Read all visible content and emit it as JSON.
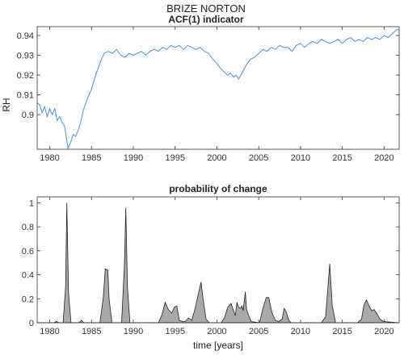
{
  "figure": {
    "suptitle": "BRIZE NORTON"
  },
  "chart_data": [
    {
      "type": "line",
      "title": "ACF(1) indicator",
      "xlabel": "",
      "ylabel": "RH",
      "xlim": [
        1978.5,
        2021.8
      ],
      "ylim": [
        0.8825,
        0.9445
      ],
      "xticks": [
        1980,
        1985,
        1990,
        1995,
        2000,
        2005,
        2010,
        2015,
        2020
      ],
      "yticks": [
        0.9,
        0.91,
        0.92,
        0.93,
        0.94
      ],
      "yticklabels": [
        "0.9",
        "0.91",
        "0.92",
        "0.93",
        "0.94"
      ],
      "grid": false,
      "color": "#4a90d9",
      "series": [
        {
          "x": [
            1978.5,
            1978.8,
            1979.1,
            1979.4,
            1979.7,
            1980.0,
            1980.3,
            1980.6,
            1980.9,
            1981.2,
            1981.5,
            1981.8,
            1982.0,
            1982.2,
            1982.5,
            1982.8,
            1983.1,
            1983.4,
            1983.7,
            1984.0,
            1984.5,
            1985.0,
            1985.5,
            1986.0,
            1986.5,
            1987.0,
            1987.5,
            1988.0,
            1988.5,
            1989.0,
            1989.5,
            1990.0,
            1990.5,
            1991.0,
            1991.5,
            1992.0,
            1992.5,
            1993.0,
            1993.5,
            1994.0,
            1994.5,
            1995.0,
            1995.5,
            1996.0,
            1996.5,
            1997.0,
            1997.5,
            1998.0,
            1998.5,
            1999.0,
            1999.5,
            2000.0,
            2000.5,
            2001.0,
            2001.3,
            2001.6,
            2002.0,
            2002.3,
            2002.6,
            2003.0,
            2003.5,
            2004.0,
            2004.5,
            2005.0,
            2005.5,
            2006.0,
            2006.5,
            2007.0,
            2007.5,
            2008.0,
            2008.5,
            2009.0,
            2009.5,
            2010.0,
            2010.5,
            2011.0,
            2011.5,
            2012.0,
            2012.5,
            2013.0,
            2013.5,
            2014.0,
            2014.5,
            2015.0,
            2015.5,
            2016.0,
            2016.5,
            2017.0,
            2017.5,
            2018.0,
            2018.5,
            2019.0,
            2019.5,
            2020.0,
            2020.5,
            2021.0,
            2021.5,
            2021.8
          ],
          "y": [
            0.906,
            0.905,
            0.901,
            0.904,
            0.899,
            0.903,
            0.9,
            0.903,
            0.897,
            0.899,
            0.896,
            0.894,
            0.888,
            0.883,
            0.886,
            0.89,
            0.889,
            0.892,
            0.896,
            0.902,
            0.908,
            0.913,
            0.92,
            0.926,
            0.931,
            0.932,
            0.931,
            0.933,
            0.93,
            0.929,
            0.931,
            0.93,
            0.931,
            0.932,
            0.93,
            0.932,
            0.933,
            0.932,
            0.934,
            0.933,
            0.935,
            0.934,
            0.935,
            0.933,
            0.935,
            0.934,
            0.933,
            0.934,
            0.932,
            0.931,
            0.928,
            0.926,
            0.923,
            0.921,
            0.92,
            0.921,
            0.919,
            0.92,
            0.918,
            0.921,
            0.925,
            0.928,
            0.929,
            0.931,
            0.933,
            0.932,
            0.934,
            0.933,
            0.935,
            0.934,
            0.934,
            0.932,
            0.935,
            0.936,
            0.934,
            0.936,
            0.937,
            0.936,
            0.938,
            0.937,
            0.936,
            0.937,
            0.938,
            0.936,
            0.938,
            0.939,
            0.937,
            0.938,
            0.937,
            0.939,
            0.938,
            0.939,
            0.938,
            0.94,
            0.939,
            0.941,
            0.943,
            0.943
          ]
        }
      ]
    },
    {
      "type": "area",
      "title": "probability of change",
      "xlabel": "time [years]",
      "ylabel": "",
      "xlim": [
        1978.5,
        2021.8
      ],
      "ylim": [
        0,
        1.05
      ],
      "xticks": [
        1980,
        1985,
        1990,
        1995,
        2000,
        2005,
        2010,
        2015,
        2020
      ],
      "yticks": [
        0,
        0.2,
        0.4,
        0.6,
        0.8,
        1
      ],
      "yticklabels": [
        "0",
        "0.2",
        "0.4",
        "0.6",
        "0.8",
        "1"
      ],
      "grid": false,
      "fill_color": "#a9a9a9",
      "series": [
        {
          "x": [
            1978.5,
            1980.5,
            1980.8,
            1981.1,
            1981.6,
            1981.9,
            1982.05,
            1982.25,
            1982.55,
            1983.5,
            1983.8,
            1984.1,
            1986.0,
            1986.4,
            1986.65,
            1986.95,
            1987.1,
            1987.45,
            1988.6,
            1988.95,
            1989.1,
            1989.3,
            1989.6,
            1993.0,
            1993.4,
            1993.8,
            1994.2,
            1994.6,
            1994.9,
            1995.2,
            1995.5,
            1995.9,
            1996.2,
            1996.6,
            1997.0,
            1997.4,
            1997.8,
            1998.1,
            1998.3,
            1998.7,
            1999.1,
            2000.5,
            2000.9,
            2001.3,
            2001.7,
            2002.0,
            2002.2,
            2002.4,
            2002.6,
            2002.85,
            2003.0,
            2003.15,
            2003.4,
            2003.55,
            2003.8,
            2004.1,
            2005.1,
            2005.5,
            2005.9,
            2006.2,
            2006.6,
            2007.0,
            2007.4,
            2007.8,
            2008.05,
            2008.3,
            2008.6,
            2008.9,
            2012.5,
            2013.0,
            2013.3,
            2013.5,
            2013.8,
            2014.2,
            2016.8,
            2017.3,
            2017.6,
            2017.9,
            2018.2,
            2018.5,
            2018.8,
            2019.1,
            2019.5,
            2019.9,
            2021.8
          ],
          "y": [
            0,
            0,
            0.01,
            0,
            0,
            0.3,
            1.0,
            0.25,
            0,
            0,
            0.02,
            0,
            0,
            0.2,
            0.45,
            0.44,
            0.2,
            0,
            0,
            0.5,
            0.96,
            0.3,
            0,
            0,
            0.06,
            0.17,
            0.11,
            0.08,
            0.13,
            0.14,
            0.02,
            0.01,
            0.01,
            0.04,
            0.02,
            0.12,
            0.25,
            0.34,
            0.22,
            0.03,
            0,
            0,
            0.04,
            0.13,
            0.16,
            0.1,
            0.06,
            0.17,
            0.13,
            0.12,
            0.14,
            0.1,
            0.26,
            0.11,
            0.06,
            0.01,
            0,
            0.12,
            0.21,
            0.21,
            0.08,
            0.02,
            0.01,
            0.03,
            0.12,
            0.09,
            0.02,
            0,
            0,
            0.05,
            0.32,
            0.49,
            0.14,
            0,
            0,
            0.03,
            0.15,
            0.19,
            0.14,
            0.1,
            0.11,
            0.08,
            0.03,
            0.01,
            0
          ]
        }
      ]
    }
  ]
}
